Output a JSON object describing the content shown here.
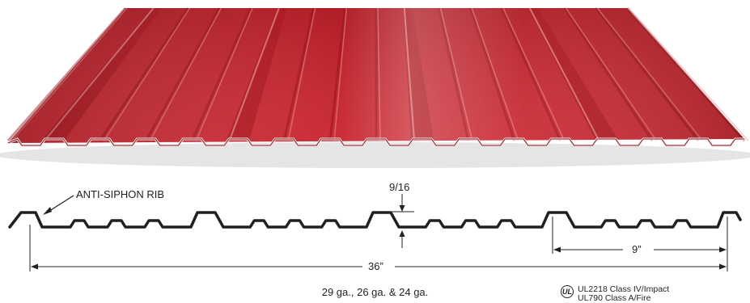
{
  "panel_color": "#c8202a",
  "callout": {
    "label": "ANTI-SIPHON RIB"
  },
  "dimensions": {
    "rib_height": "9/16",
    "rib_spacing": "9”",
    "coverage_width": "36”"
  },
  "gauges": "29 ga., 26 ga. & 24 ga.",
  "certification": {
    "logo": "UL",
    "lines": [
      "UL2218 Class IV/Impact",
      "UL790 Class A/Fire"
    ]
  }
}
